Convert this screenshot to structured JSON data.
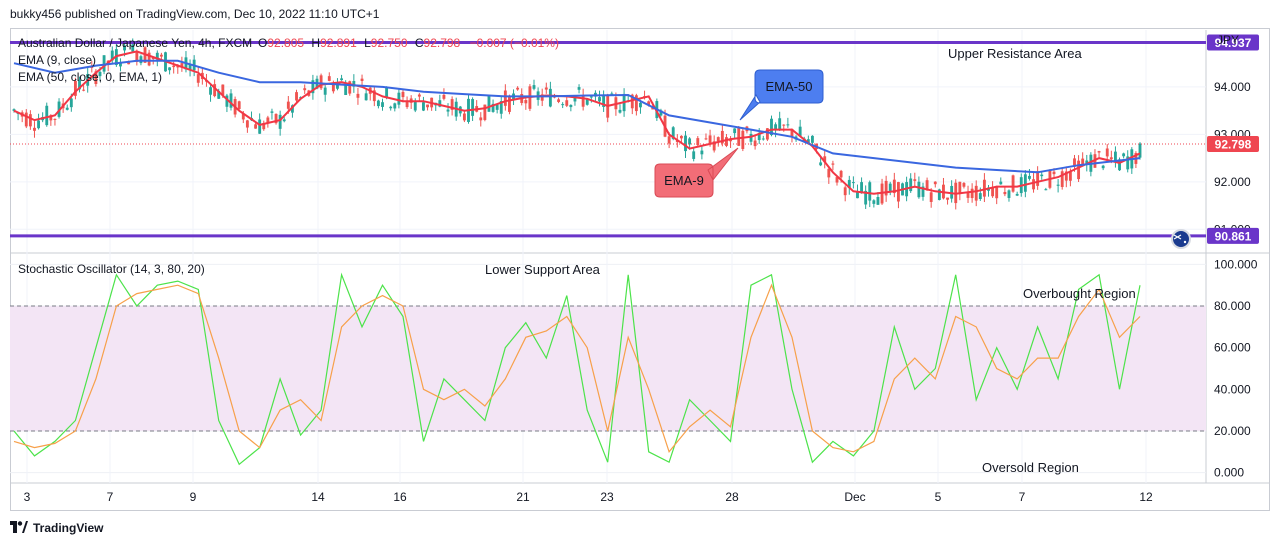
{
  "header": {
    "publisher_line": "bukky456 published on TradingView.com, Dec 10, 2022 11:10 UTC+1"
  },
  "footer": {
    "brand": "TradingView"
  },
  "chart_data": [
    {
      "type": "candlestick",
      "legend": {
        "symbol": "Australian Dollar / Japanese Yen, 4h, FXCM",
        "ohlc": [
          {
            "label": "O",
            "value": "92.805"
          },
          {
            "label": "H",
            "value": "92.891"
          },
          {
            "label": "L",
            "value": "92.750"
          },
          {
            "label": "C",
            "value": "92.798"
          },
          {
            "label": "",
            "value": "−0.007 (−0.01%)"
          }
        ],
        "indicators": [
          "EMA (9, close)",
          "EMA (50, close, 0, EMA, 1)"
        ]
      },
      "currency": "JPY",
      "y_ticks": [
        "94.000",
        "93.000",
        "92.000",
        "91.000"
      ],
      "ylim": [
        90.5,
        95.2
      ],
      "price_badges": [
        {
          "value": "94.937",
          "color": "#6a35c9"
        },
        {
          "value": "92.798",
          "color": "#ef4650"
        },
        {
          "value": "90.861",
          "color": "#6a35c9"
        }
      ],
      "horizontal_lines": [
        {
          "name": "upper-resistance",
          "value": 94.937,
          "label": "Upper Resistance Area",
          "color": "#6a35c9"
        },
        {
          "name": "lower-support",
          "value": 90.861,
          "label": "Lower Support Area",
          "color": "#6a35c9"
        }
      ],
      "callouts": [
        {
          "text": "EMA-50",
          "color": "#4d7ef0"
        },
        {
          "text": "EMA-9",
          "color": "#f26d77"
        }
      ],
      "series": [
        {
          "name": "EMA (9, close)",
          "color": "#f23645",
          "x": [
            0,
            5,
            10,
            15,
            20,
            25,
            30,
            35,
            40,
            45,
            50,
            55,
            60,
            65,
            70,
            75,
            80,
            85,
            90,
            95,
            100,
            105,
            110,
            115,
            120,
            125,
            130,
            135,
            140,
            145,
            150,
            155,
            160,
            165,
            170,
            175,
            180,
            185,
            190,
            195,
            200,
            205,
            210,
            215,
            220,
            225,
            230,
            235,
            240,
            245,
            250,
            255,
            260,
            265,
            270,
            275
          ],
          "y": [
            93.5,
            93.3,
            93.4,
            93.9,
            94.3,
            94.65,
            94.75,
            94.6,
            94.45,
            94.3,
            93.9,
            93.5,
            93.2,
            93.3,
            93.75,
            94.05,
            94.1,
            94.0,
            93.8,
            93.7,
            93.7,
            93.6,
            93.5,
            93.55,
            93.7,
            93.78,
            93.82,
            93.8,
            93.75,
            93.6,
            93.7,
            93.8,
            93.0,
            92.7,
            92.8,
            92.9,
            92.95,
            93.1,
            93.1,
            92.75,
            92.2,
            91.8,
            91.75,
            91.8,
            91.9,
            91.8,
            91.75,
            91.8,
            91.9,
            91.9,
            92.0,
            92.1,
            92.3,
            92.5,
            92.4,
            92.6
          ]
        },
        {
          "name": "EMA (50, close, 0, EMA, 1)",
          "color": "#3a67e0",
          "x": [
            0,
            10,
            20,
            30,
            40,
            50,
            60,
            70,
            80,
            90,
            100,
            110,
            120,
            130,
            140,
            150,
            160,
            170,
            180,
            190,
            200,
            210,
            220,
            230,
            240,
            250,
            260,
            270,
            275
          ],
          "y": [
            94.5,
            94.3,
            94.45,
            94.55,
            94.55,
            94.3,
            94.1,
            94.1,
            94.05,
            94.0,
            93.9,
            93.85,
            93.8,
            93.8,
            93.82,
            93.83,
            93.4,
            93.25,
            93.1,
            92.95,
            92.6,
            92.5,
            92.4,
            92.3,
            92.25,
            92.2,
            92.35,
            92.45,
            92.5
          ]
        }
      ],
      "x_ticks": [
        "3",
        "7",
        "9",
        "14",
        "16",
        "21",
        "23",
        "28",
        "Dec",
        "5",
        "7",
        "12"
      ]
    },
    {
      "type": "line",
      "title": "Stochastic Oscillator (14, 3, 80, 20)",
      "y_ticks": [
        "100.000",
        "80.000",
        "60.000",
        "40.000",
        "20.000",
        "0.000"
      ],
      "ylim": [
        -5,
        105
      ],
      "bands": [
        {
          "from": 20,
          "to": 80,
          "color": "#f3e5f5"
        }
      ],
      "levels": [
        80,
        20
      ],
      "annotations": [
        "Overbought Region",
        "Oversold Region"
      ],
      "series": [
        {
          "name": "%K",
          "color": "#4ce34a",
          "x": [
            0,
            5,
            10,
            15,
            20,
            25,
            30,
            35,
            40,
            45,
            50,
            55,
            60,
            65,
            70,
            75,
            80,
            85,
            90,
            95,
            100,
            105,
            110,
            115,
            120,
            125,
            130,
            135,
            140,
            145,
            150,
            155,
            160,
            165,
            170,
            175,
            180,
            185,
            190,
            195,
            200,
            205,
            210,
            215,
            220,
            225,
            230,
            235,
            240,
            245,
            250,
            255,
            260,
            265,
            270,
            275
          ],
          "y": [
            20,
            8,
            15,
            25,
            60,
            95,
            80,
            90,
            92,
            88,
            25,
            4,
            12,
            45,
            18,
            30,
            95,
            70,
            90,
            75,
            15,
            45,
            35,
            25,
            60,
            72,
            55,
            85,
            30,
            5,
            95,
            10,
            5,
            35,
            25,
            15,
            90,
            95,
            40,
            5,
            15,
            8,
            20,
            70,
            40,
            50,
            95,
            35,
            60,
            40,
            70,
            45,
            88,
            95,
            40,
            90
          ]
        },
        {
          "name": "%D",
          "color": "#f7a04a",
          "x": [
            0,
            5,
            10,
            15,
            20,
            25,
            30,
            35,
            40,
            45,
            50,
            55,
            60,
            65,
            70,
            75,
            80,
            85,
            90,
            95,
            100,
            105,
            110,
            115,
            120,
            125,
            130,
            135,
            140,
            145,
            150,
            155,
            160,
            165,
            170,
            175,
            180,
            185,
            190,
            195,
            200,
            205,
            210,
            215,
            220,
            225,
            230,
            235,
            240,
            245,
            250,
            255,
            260,
            265,
            270,
            275
          ],
          "y": [
            15,
            12,
            14,
            20,
            45,
            80,
            86,
            88,
            90,
            86,
            55,
            20,
            12,
            30,
            35,
            25,
            70,
            80,
            85,
            80,
            40,
            35,
            40,
            32,
            45,
            65,
            68,
            75,
            60,
            20,
            65,
            40,
            10,
            22,
            30,
            22,
            65,
            90,
            65,
            20,
            12,
            10,
            15,
            45,
            55,
            45,
            75,
            70,
            50,
            45,
            55,
            55,
            75,
            88,
            65,
            75
          ]
        }
      ]
    }
  ]
}
